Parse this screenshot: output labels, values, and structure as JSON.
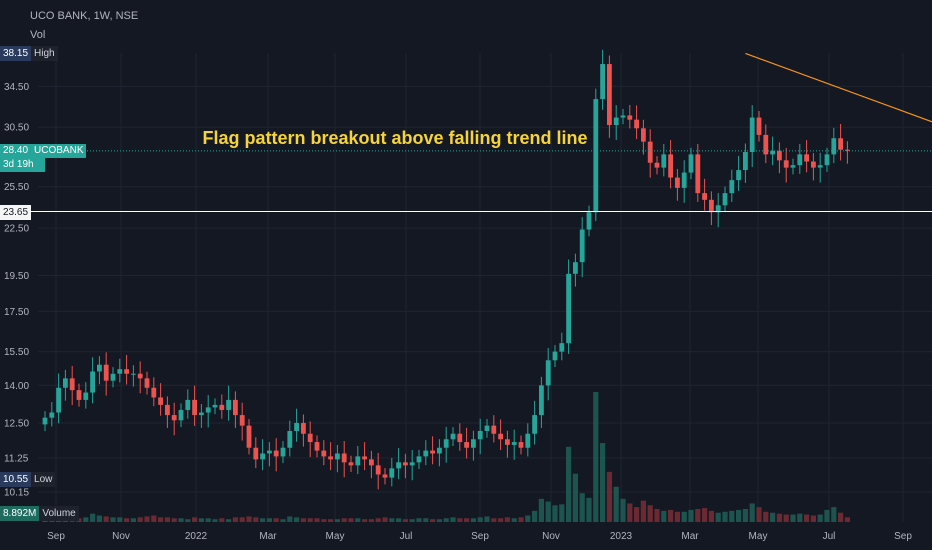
{
  "header": {
    "title": "UCO BANK, 1W, NSE",
    "vol_label": "Vol"
  },
  "chart_data": {
    "type": "candlestick",
    "symbol": "UCOBANK",
    "interval": "1W",
    "exchange": "NSE",
    "y_ticks": [
      "34.50",
      "30.50",
      "25.50",
      "22.50",
      "19.50",
      "17.50",
      "15.50",
      "14.00",
      "12.50",
      "11.25",
      "10.15"
    ],
    "x_ticks": [
      "Sep",
      "Nov",
      "2022",
      "Mar",
      "May",
      "Jul",
      "Sep",
      "Nov",
      "2023",
      "Mar",
      "May",
      "Jul",
      "Sep"
    ],
    "ylim": [
      10.15,
      38.15
    ],
    "high": {
      "value": "38.15",
      "label": "High"
    },
    "low": {
      "value": "10.55",
      "label": "Low"
    },
    "last": {
      "value": "28.40",
      "symbol": "UCOBANK",
      "countdown": "3d 19h"
    },
    "level": {
      "value": "23.65"
    },
    "volume": {
      "value": "8.892M",
      "label": "Volume"
    },
    "annotation": "Flag pattern breakout above falling trend line",
    "trend_line": [
      {
        "week": 103,
        "price": 38.1
      },
      {
        "week": 144,
        "price": 28.0
      }
    ],
    "colors": {
      "up": "#26a69a",
      "down": "#ef5350",
      "trend": "#f7931a",
      "annotation": "#f5d33a",
      "level_line": "#ffffff"
    },
    "closes": [
      12.7,
      12.9,
      13.9,
      14.3,
      13.8,
      13.4,
      13.7,
      14.6,
      14.9,
      14.2,
      14.5,
      14.7,
      14.5,
      14.5,
      14.3,
      13.9,
      13.5,
      13.2,
      12.8,
      12.6,
      13.0,
      13.4,
      12.8,
      12.9,
      13.1,
      13.2,
      13.0,
      13.4,
      12.8,
      12.4,
      11.6,
      11.2,
      11.4,
      11.5,
      11.3,
      11.6,
      12.2,
      12.5,
      12.1,
      11.8,
      11.5,
      11.3,
      11.2,
      11.4,
      11.1,
      11.0,
      11.3,
      11.2,
      11.0,
      10.7,
      10.6,
      10.9,
      11.1,
      11.0,
      11.1,
      11.3,
      11.5,
      11.4,
      11.6,
      11.9,
      12.1,
      11.8,
      11.6,
      11.9,
      12.2,
      12.4,
      12.1,
      11.9,
      11.7,
      11.8,
      11.6,
      12.1,
      12.8,
      14.0,
      15.1,
      15.5,
      15.9,
      19.6,
      20.3,
      22.4,
      23.6,
      33.2,
      36.9,
      30.7,
      31.4,
      31.6,
      31.2,
      30.4,
      29.2,
      27.4,
      27.0,
      28.1,
      26.2,
      25.4,
      26.6,
      28.1,
      25.0,
      24.5,
      23.6,
      24.1,
      25.0,
      26.0,
      26.8,
      28.3,
      31.4,
      29.8,
      28.1,
      28.4,
      27.6,
      27.0,
      27.2,
      28.1,
      27.5,
      27.0,
      27.2,
      28.1,
      29.5,
      28.5,
      28.4
    ],
    "volumes": [
      0.4,
      0.5,
      0.8,
      0.6,
      0.5,
      0.4,
      0.5,
      0.9,
      0.7,
      0.6,
      0.5,
      0.5,
      0.4,
      0.4,
      0.5,
      0.6,
      0.7,
      0.5,
      0.5,
      0.4,
      0.4,
      0.3,
      0.5,
      0.4,
      0.4,
      0.3,
      0.4,
      0.3,
      0.5,
      0.5,
      0.6,
      0.5,
      0.4,
      0.4,
      0.4,
      0.3,
      0.6,
      0.5,
      0.4,
      0.4,
      0.4,
      0.3,
      0.3,
      0.3,
      0.4,
      0.4,
      0.4,
      0.3,
      0.3,
      0.4,
      0.5,
      0.4,
      0.4,
      0.3,
      0.3,
      0.4,
      0.4,
      0.3,
      0.3,
      0.4,
      0.5,
      0.4,
      0.4,
      0.4,
      0.5,
      0.6,
      0.4,
      0.4,
      0.5,
      0.4,
      0.5,
      0.7,
      1.2,
      2.5,
      2.2,
      1.8,
      1.9,
      8.1,
      5.2,
      3.1,
      2.6,
      14.0,
      8.5,
      5.4,
      3.8,
      2.5,
      2.0,
      1.6,
      2.3,
      1.8,
      1.4,
      1.2,
      1.3,
      1.1,
      1.1,
      1.3,
      1.4,
      1.5,
      1.2,
      1.0,
      1.1,
      1.2,
      1.3,
      1.4,
      2.0,
      1.6,
      1.1,
      1.0,
      0.9,
      0.8,
      0.8,
      0.9,
      0.8,
      0.7,
      0.8,
      1.3,
      1.6,
      1.0,
      0.5
    ]
  }
}
